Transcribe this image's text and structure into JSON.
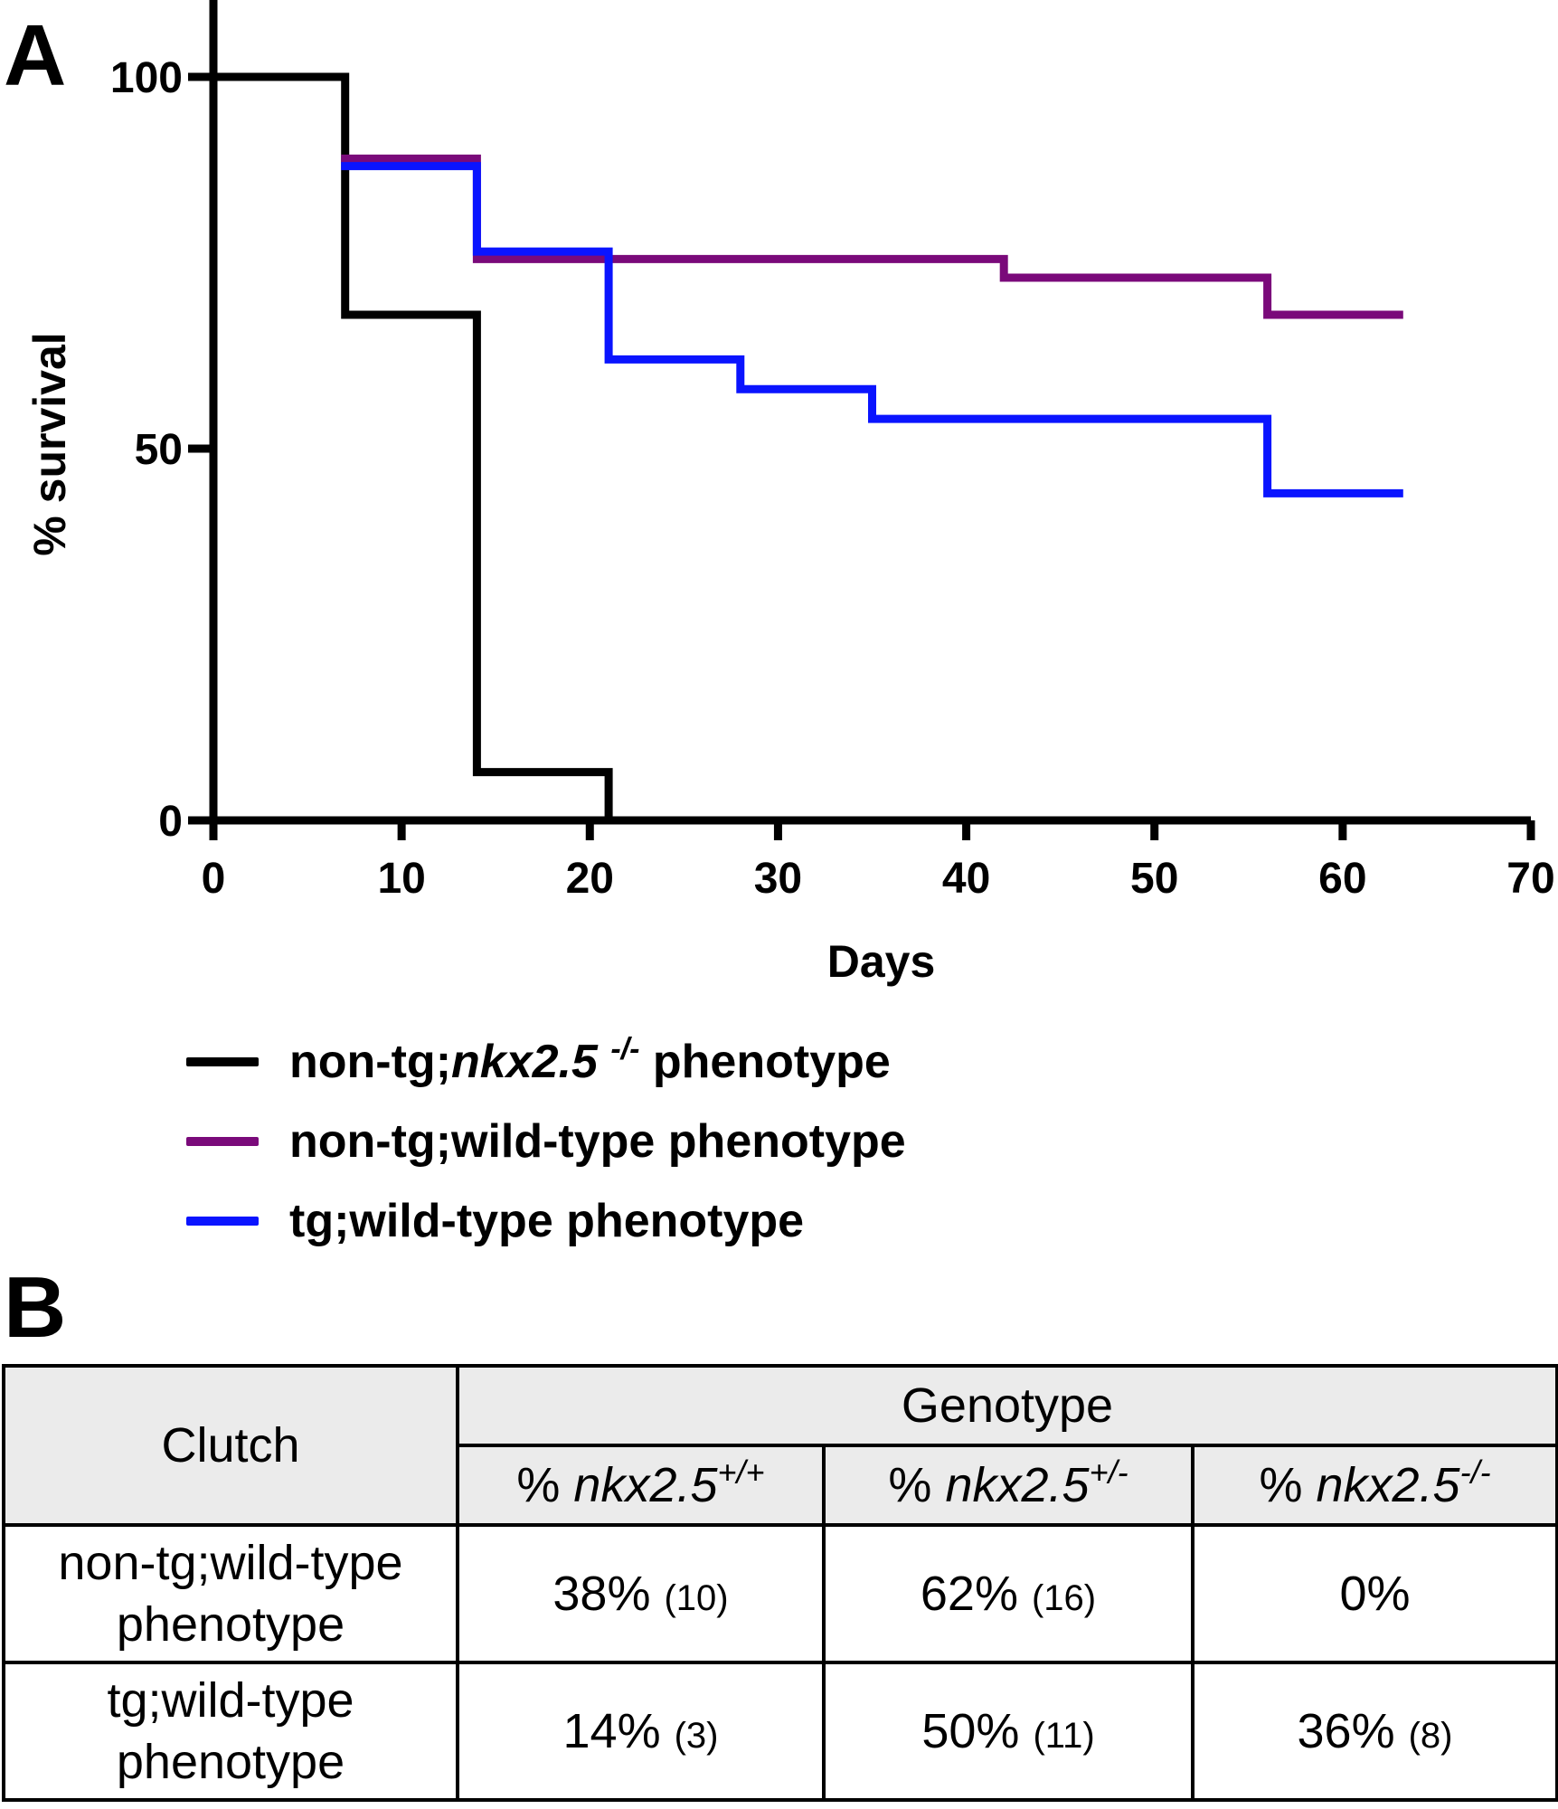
{
  "panel_a_label": "A",
  "panel_b_label": "B",
  "chart_data": {
    "type": "line",
    "subtype": "kaplan-meier step",
    "xlabel": "Days",
    "ylabel": "% survival",
    "xlim": [
      0,
      70
    ],
    "ylim": [
      0,
      100
    ],
    "xticks": [
      0,
      10,
      20,
      30,
      40,
      50,
      60,
      70
    ],
    "yticks": [
      0,
      50,
      100
    ],
    "grid": false,
    "legend_position": "below",
    "series": [
      {
        "name": "non-tg;nkx2.5 -/- phenotype",
        "color": "#000000",
        "x": [
          0,
          7,
          14,
          21
        ],
        "y": [
          100,
          68,
          6.5,
          0
        ]
      },
      {
        "name": "non-tg;wild-type phenotype",
        "color": "#7a0a7a",
        "x": [
          7,
          14,
          42,
          56,
          63
        ],
        "y": [
          89,
          75.5,
          73,
          68,
          68
        ]
      },
      {
        "name": "tg;wild-type phenotype",
        "color": "#0a14ff",
        "x": [
          7,
          14,
          21,
          28,
          35,
          56,
          63
        ],
        "y": [
          88,
          76.5,
          62,
          58,
          54,
          44,
          44
        ]
      }
    ]
  },
  "legend": [
    {
      "prefix": "non-tg;",
      "italic": "nkx2.5",
      "sup": "-/-",
      "suffix": " phenotype",
      "color": "#000000"
    },
    {
      "prefix": "non-tg;wild-type phenotype",
      "italic": "",
      "sup": "",
      "suffix": "",
      "color": "#7a0a7a"
    },
    {
      "prefix": "tg;wild-type phenotype",
      "italic": "",
      "sup": "",
      "suffix": "",
      "color": "#0a14ff"
    }
  ],
  "table": {
    "clutch_header": "Clutch",
    "genotype_header": "Genotype",
    "columns": [
      {
        "prefix": "% ",
        "italic": "nkx2.5",
        "sup": "+/+"
      },
      {
        "prefix": "% ",
        "italic": "nkx2.5",
        "sup": "+/-"
      },
      {
        "prefix": "% ",
        "italic": "nkx2.5",
        "sup": "-/-"
      }
    ],
    "rows": [
      {
        "label_line1": "non-tg;wild-type",
        "label_line2": "phenotype",
        "cells": [
          {
            "pct": "38%",
            "n": "(10)"
          },
          {
            "pct": "62%",
            "n": "(16)"
          },
          {
            "pct": "0%",
            "n": ""
          }
        ]
      },
      {
        "label_line1": "tg;wild-type",
        "label_line2": "phenotype",
        "cells": [
          {
            "pct": "14%",
            "n": "(3)"
          },
          {
            "pct": "50%",
            "n": "(11)"
          },
          {
            "pct": "36%",
            "n": "(8)"
          }
        ]
      }
    ]
  }
}
